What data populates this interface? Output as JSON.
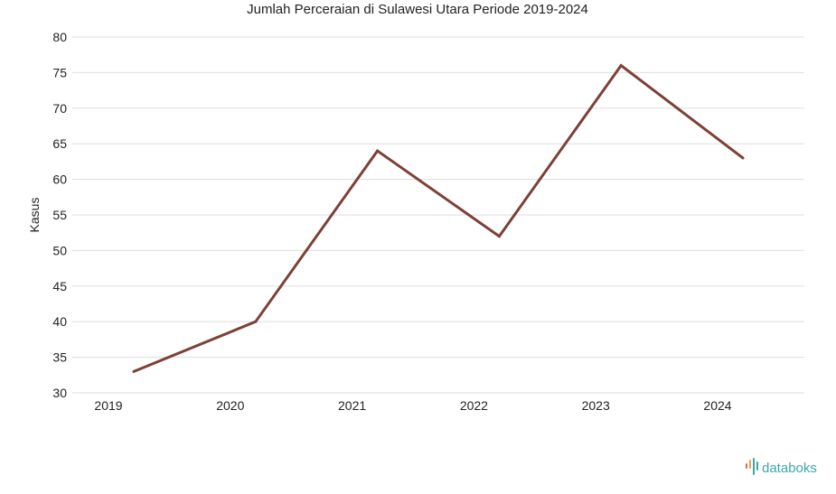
{
  "chart_data": {
    "type": "line",
    "title": "Jumlah Perceraian di Sulawesi Utara Periode 2019-2024",
    "xlabel": "",
    "ylabel": "Kasus",
    "categories": [
      "2019",
      "2020",
      "2021",
      "2022",
      "2023",
      "2024"
    ],
    "series": [
      {
        "values": [
          33,
          40,
          64,
          52,
          76,
          63
        ]
      }
    ],
    "ylim": [
      30,
      80
    ],
    "yticks": [
      30,
      35,
      40,
      45,
      50,
      55,
      60,
      65,
      70,
      75,
      80
    ],
    "grid": true,
    "legend": "none",
    "line_color": "#7d4036",
    "grid_color": "#dddddd"
  },
  "brand": {
    "name": "databoks",
    "icon": "databoks-logo-icon",
    "colors": [
      "#e8604c",
      "#f29a3b",
      "#3aa9a6"
    ]
  }
}
